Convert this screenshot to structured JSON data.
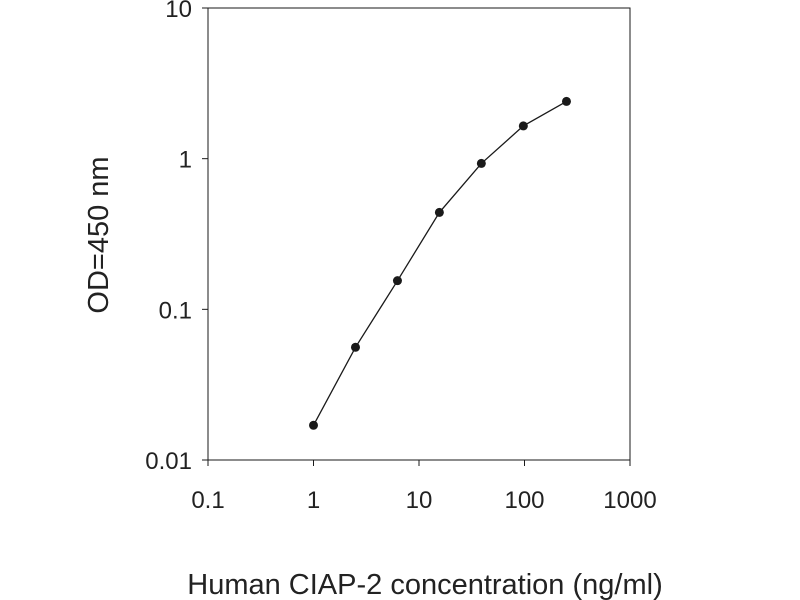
{
  "chart_data": {
    "type": "line",
    "title": "",
    "xlabel": "Human CIAP-2 concentration (ng/ml)",
    "ylabel": "OD=450 nm",
    "x_scale": "log",
    "y_scale": "log",
    "xlim": [
      0.1,
      1000
    ],
    "ylim": [
      0.01,
      10
    ],
    "x_ticks": [
      0.1,
      1,
      10,
      100,
      1000
    ],
    "x_tick_labels": [
      "0.1",
      "1",
      "10",
      "100",
      "1000"
    ],
    "y_ticks": [
      0.01,
      0.1,
      1,
      10
    ],
    "y_tick_labels": [
      "0.01",
      "0.1",
      "1",
      "10"
    ],
    "grid": false,
    "legend": "none",
    "series": [
      {
        "x": [
          1,
          2.5,
          6.25,
          15.6,
          39,
          97.5,
          250
        ],
        "y": [
          0.017,
          0.056,
          0.155,
          0.44,
          0.93,
          1.65,
          2.4
        ],
        "color": "#1a1a1a",
        "marker": "circle"
      }
    ]
  }
}
